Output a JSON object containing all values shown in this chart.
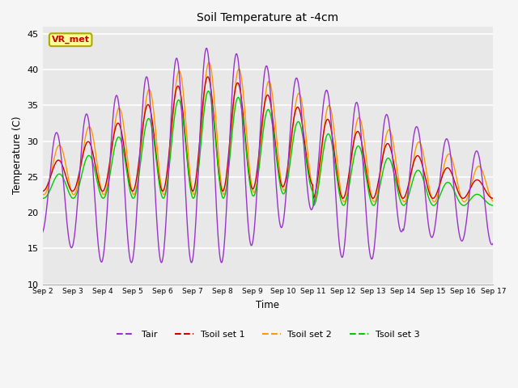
{
  "title": "Soil Temperature at -4cm",
  "xlabel": "Time",
  "ylabel": "Temperature (C)",
  "ylim": [
    10,
    46
  ],
  "yticks": [
    10,
    15,
    20,
    25,
    30,
    35,
    40,
    45
  ],
  "colors": {
    "Tair": "#9933cc",
    "Tsoil_set1": "#cc0000",
    "Tsoil_set2": "#ff9900",
    "Tsoil_set3": "#00cc00"
  },
  "legend_labels": [
    "Tair",
    "Tsoil set 1",
    "Tsoil set 2",
    "Tsoil set 3"
  ],
  "annotation_text": "VR_met",
  "annotation_color": "#cc0000",
  "annotation_bg": "#ffff99",
  "plot_bg": "#e8e8e8",
  "fig_bg": "#f5f5f5",
  "grid_color": "#ffffff",
  "n_days": 15,
  "pts_per_day": 48,
  "start_day": 2
}
